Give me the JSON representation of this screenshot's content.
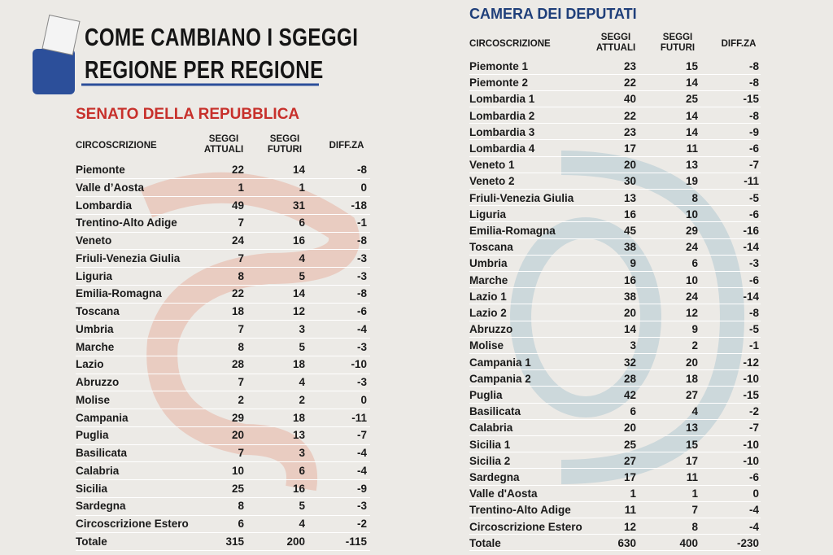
{
  "header": {
    "title_line1": "COME CAMBIANO I SGEGGI",
    "title_line2": "REGIONE PER REGIONE"
  },
  "senato": {
    "title": "SENATO DELLA REPUBBLICA",
    "columns": [
      "CIRCOSCRIZIONE",
      "SEGGI ATTUALI",
      "SEGGI FUTURI",
      "DIFF.ZA"
    ],
    "rows": [
      [
        "Piemonte",
        22,
        14,
        -8
      ],
      [
        "Valle d’Aosta",
        1,
        1,
        0
      ],
      [
        "Lombardia",
        49,
        31,
        -18
      ],
      [
        "Trentino-Alto Adige",
        7,
        6,
        -1
      ],
      [
        "Veneto",
        24,
        16,
        -8
      ],
      [
        "Friuli-Venezia Giulia",
        7,
        4,
        -3
      ],
      [
        "Liguria",
        8,
        5,
        -3
      ],
      [
        "Emilia-Romagna",
        22,
        14,
        -8
      ],
      [
        "Toscana",
        18,
        12,
        -6
      ],
      [
        "Umbria",
        7,
        3,
        -4
      ],
      [
        "Marche",
        8,
        5,
        -3
      ],
      [
        "Lazio",
        28,
        18,
        -10
      ],
      [
        "Abruzzo",
        7,
        4,
        -3
      ],
      [
        "Molise",
        2,
        2,
        0
      ],
      [
        "Campania",
        29,
        18,
        -11
      ],
      [
        "Puglia",
        20,
        13,
        -7
      ],
      [
        "Basilicata",
        7,
        3,
        -4
      ],
      [
        "Calabria",
        10,
        6,
        -4
      ],
      [
        "Sicilia",
        25,
        16,
        -9
      ],
      [
        "Sardegna",
        8,
        5,
        -3
      ],
      [
        "Circoscrizione Estero",
        6,
        4,
        -2
      ],
      [
        "Totale",
        315,
        200,
        -115
      ]
    ]
  },
  "camera": {
    "title": "CAMERA DEI DEPUTATI",
    "columns": [
      "CIRCOSCRIZIONE",
      "SEGGI ATTUALI",
      "SEGGI FUTURI",
      "DIFF.ZA"
    ],
    "rows": [
      [
        "Piemonte 1",
        23,
        15,
        -8
      ],
      [
        "Piemonte 2",
        22,
        14,
        -8
      ],
      [
        "Lombardia 1",
        40,
        25,
        -15
      ],
      [
        "Lombardia 2",
        22,
        14,
        -8
      ],
      [
        "Lombardia 3",
        23,
        14,
        -9
      ],
      [
        "Lombardia 4",
        17,
        11,
        -6
      ],
      [
        "Veneto 1",
        20,
        13,
        -7
      ],
      [
        "Veneto 2",
        30,
        19,
        -11
      ],
      [
        "Friuli-Venezia Giulia",
        13,
        8,
        -5
      ],
      [
        "Liguria",
        16,
        10,
        -6
      ],
      [
        "Emilia-Romagna",
        45,
        29,
        -16
      ],
      [
        "Toscana",
        38,
        24,
        -14
      ],
      [
        "Umbria",
        9,
        6,
        -3
      ],
      [
        "Marche",
        16,
        10,
        -6
      ],
      [
        "Lazio 1",
        38,
        24,
        -14
      ],
      [
        "Lazio 2",
        20,
        12,
        -8
      ],
      [
        "Abruzzo",
        14,
        9,
        -5
      ],
      [
        "Molise",
        3,
        2,
        -1
      ],
      [
        "Campania 1",
        32,
        20,
        -12
      ],
      [
        "Campania 2",
        28,
        18,
        -10
      ],
      [
        "Puglia",
        42,
        27,
        -15
      ],
      [
        "Basilicata",
        6,
        4,
        -2
      ],
      [
        "Calabria",
        20,
        13,
        -7
      ],
      [
        "Sicilia 1",
        25,
        15,
        -10
      ],
      [
        "Sicilia 2",
        27,
        17,
        -10
      ],
      [
        "Sardegna",
        17,
        11,
        -6
      ],
      [
        "Valle d'Aosta",
        1,
        1,
        0
      ],
      [
        "Trentino-Alto Adige",
        11,
        7,
        -4
      ],
      [
        "Circoscrizione Estero",
        12,
        8,
        -4
      ],
      [
        "Totale",
        630,
        400,
        -230
      ]
    ]
  }
}
